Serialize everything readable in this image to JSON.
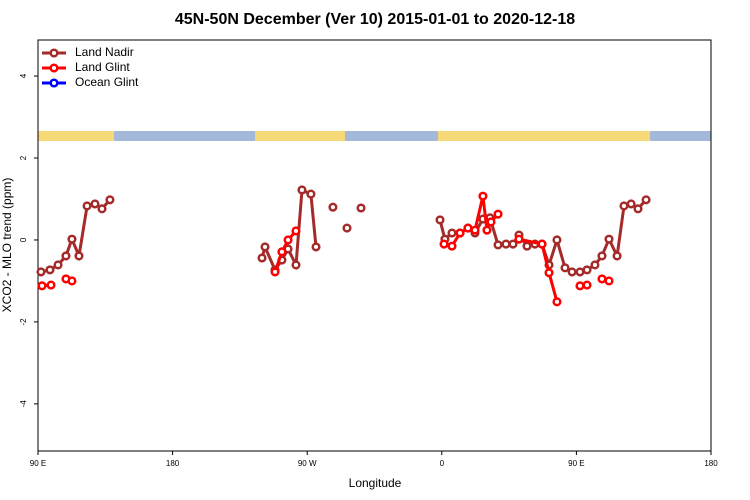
{
  "chart_data": {
    "type": "line",
    "title": "45N-50N December (Ver 10)   2015-01-01 to 2020-12-18",
    "x_label": "Longitude",
    "y_label": "XCO2 - MLO trend (ppm)",
    "xlim": [
      90,
      540
    ],
    "xticks": [
      {
        "value": 90,
        "label": "90 E"
      },
      180,
      {
        "value": 270,
        "label": "90 W"
      },
      {
        "value": 360,
        "label": "0"
      },
      {
        "value": 450,
        "label": "90 E"
      },
      {
        "value": 540,
        "label": "180"
      }
    ],
    "ylim": [
      -5.15,
      4.88
    ],
    "yticks": [
      -4,
      -2,
      0,
      2,
      4
    ],
    "legend": "top-left",
    "series": [
      {
        "name": "Land Nadir",
        "color": "#a52a2a",
        "x": [
          92.0,
          98.0,
          103.4,
          108.7,
          112.7,
          117.4,
          122.8,
          128.1,
          132.8,
          138.1,
          null,
          239.8,
          241.8,
          248.5,
          253.1,
          257.2,
          262.5,
          266.5,
          272.5,
          275.9,
          null,
          287.2,
          null,
          296.6,
          null,
          306.0,
          null,
          358.8,
          362.1,
          366.8,
          372.2,
          377.5,
          382.2,
          387.5,
          392.2,
          397.6,
          402.9,
          407.6,
          411.6,
          417.0,
          422.3,
          427.0,
          431.7,
          437.0,
          442.4,
          447.1,
          452.4,
          457.1,
          462.4,
          467.1,
          471.8,
          477.2,
          481.8,
          486.6,
          491.2,
          496.6
        ],
        "values": [
          -0.78,
          -0.73,
          -0.61,
          -0.39,
          0.02,
          -0.39,
          0.83,
          0.88,
          0.76,
          0.98,
          null,
          -0.44,
          -0.17,
          -0.73,
          -0.49,
          -0.22,
          -0.61,
          1.22,
          1.12,
          -0.17,
          null,
          0.8,
          null,
          0.29,
          null,
          0.78,
          null,
          0.49,
          0.02,
          0.17,
          0.17,
          0.29,
          0.17,
          0.51,
          0.54,
          -0.12,
          -0.1,
          -0.1,
          0.12,
          -0.15,
          -0.1,
          -0.1,
          -0.61,
          0,
          -0.68,
          -0.78,
          -0.78,
          -0.73,
          -0.61,
          -0.39,
          0.02,
          -0.39,
          0.83,
          0.88,
          0.76,
          0.98
        ]
      },
      {
        "name": "Land Glint",
        "color": "#ff0000",
        "x": [
          92.7,
          98.7,
          null,
          108.7,
          112.7,
          null,
          248.5,
          253.1,
          257.2,
          262.5,
          null,
          361.5,
          366.8,
          372.2,
          377.5,
          382.2,
          387.5,
          390.2,
          392.9,
          397.6,
          null,
          411.6,
          427.0,
          431.7,
          437.0,
          null,
          452.4,
          457.1,
          null,
          467.1,
          471.8
        ],
        "values": [
          -1.12,
          -1.1,
          null,
          -0.95,
          -1.0,
          null,
          -0.78,
          -0.29,
          0,
          0.22,
          null,
          -0.1,
          -0.15,
          0.17,
          0.29,
          0.24,
          1.07,
          0.24,
          0.44,
          0.63,
          null,
          0.02,
          -0.1,
          -0.8,
          -1.51,
          null,
          -1.12,
          -1.1,
          null,
          -0.95,
          -1.0
        ]
      },
      {
        "name": "Ocean Glint",
        "color": "#0000ff",
        "x": [],
        "values": []
      }
    ]
  }
}
